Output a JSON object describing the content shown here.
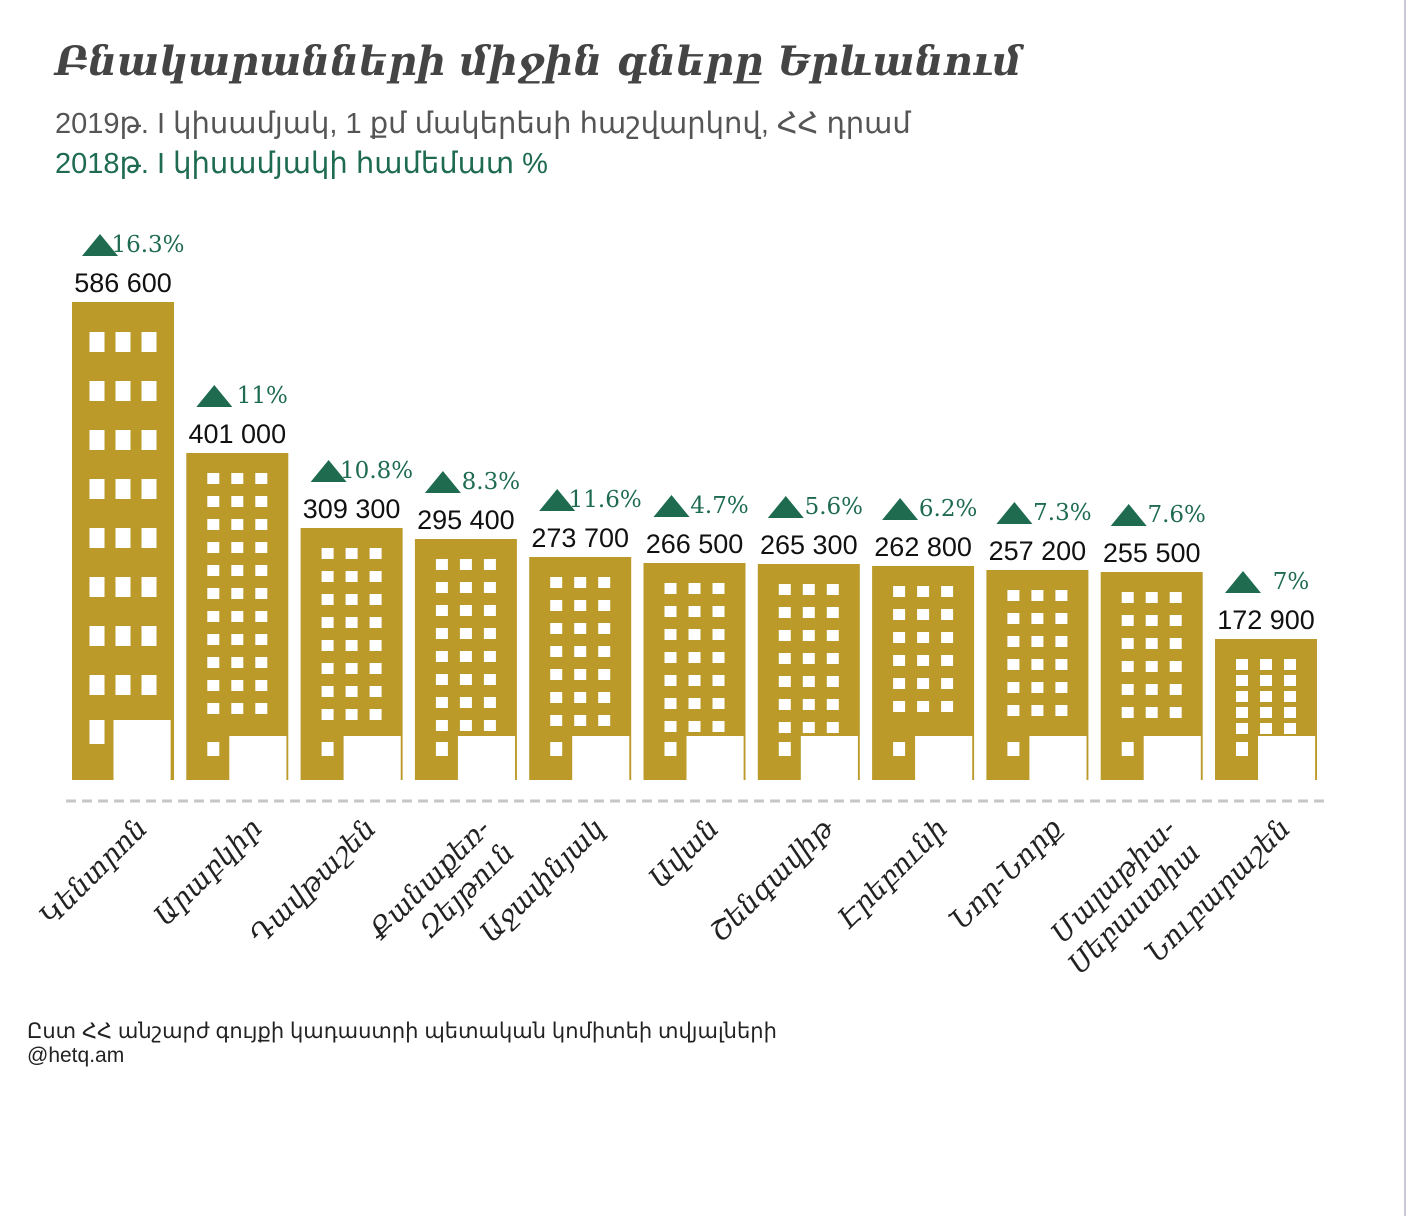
{
  "title": "Բնակարանների միջին գները Երևանում",
  "subtitle_line1": "2019թ. I կիսամյակ, 1 քմ մակերեսի հաշվարկով, ՀՀ դրամ",
  "subtitle_line2": "2018թ. I կիսամյակի համեմատ %",
  "source_line1": "Ըստ ՀՀ անշարժ գույքի կադաստրի պետական կոմիտեի տվյալների",
  "source_line2": "@hetq.am",
  "colors": {
    "bar": "#bb9a2a",
    "accent": "#1e6b50",
    "baseline": "#c7c7c7"
  },
  "chart_data": {
    "type": "bar",
    "title": "Բնակարանների միջին գները Երևանում",
    "categories": [
      [
        "Կենտրոն"
      ],
      [
        "Արաբկիր"
      ],
      [
        "Դավթաշեն"
      ],
      [
        "Քանաքեռ-",
        "Զեյթուն"
      ],
      [
        "Աջափնյակ"
      ],
      [
        "Ավան"
      ],
      [
        "Շենգավիթ"
      ],
      [
        "Էրեբունի"
      ],
      [
        "Նոր-Նորք"
      ],
      [
        "Մալաթիա-",
        "Սեբաստիա"
      ],
      [
        "Նուբարաշեն"
      ]
    ],
    "values": [
      586600,
      401000,
      309300,
      295400,
      273700,
      266500,
      265300,
      262800,
      257200,
      255500,
      172900
    ],
    "value_labels": [
      "586 600",
      "401 000",
      "309 300",
      "295 400",
      "273 700",
      "266 500",
      "265 300",
      "262 800",
      "257 200",
      "255 500",
      "172 900"
    ],
    "change_labels": [
      "16.3%",
      "11%",
      "10.8%",
      "8.3%",
      "11.6%",
      "4.7%",
      "5.6%",
      "6.2%",
      "7.3%",
      "7.6%",
      "7%"
    ],
    "change_direction": "up",
    "ylim": [
      0,
      586600
    ],
    "grid": false,
    "legend": "none"
  }
}
